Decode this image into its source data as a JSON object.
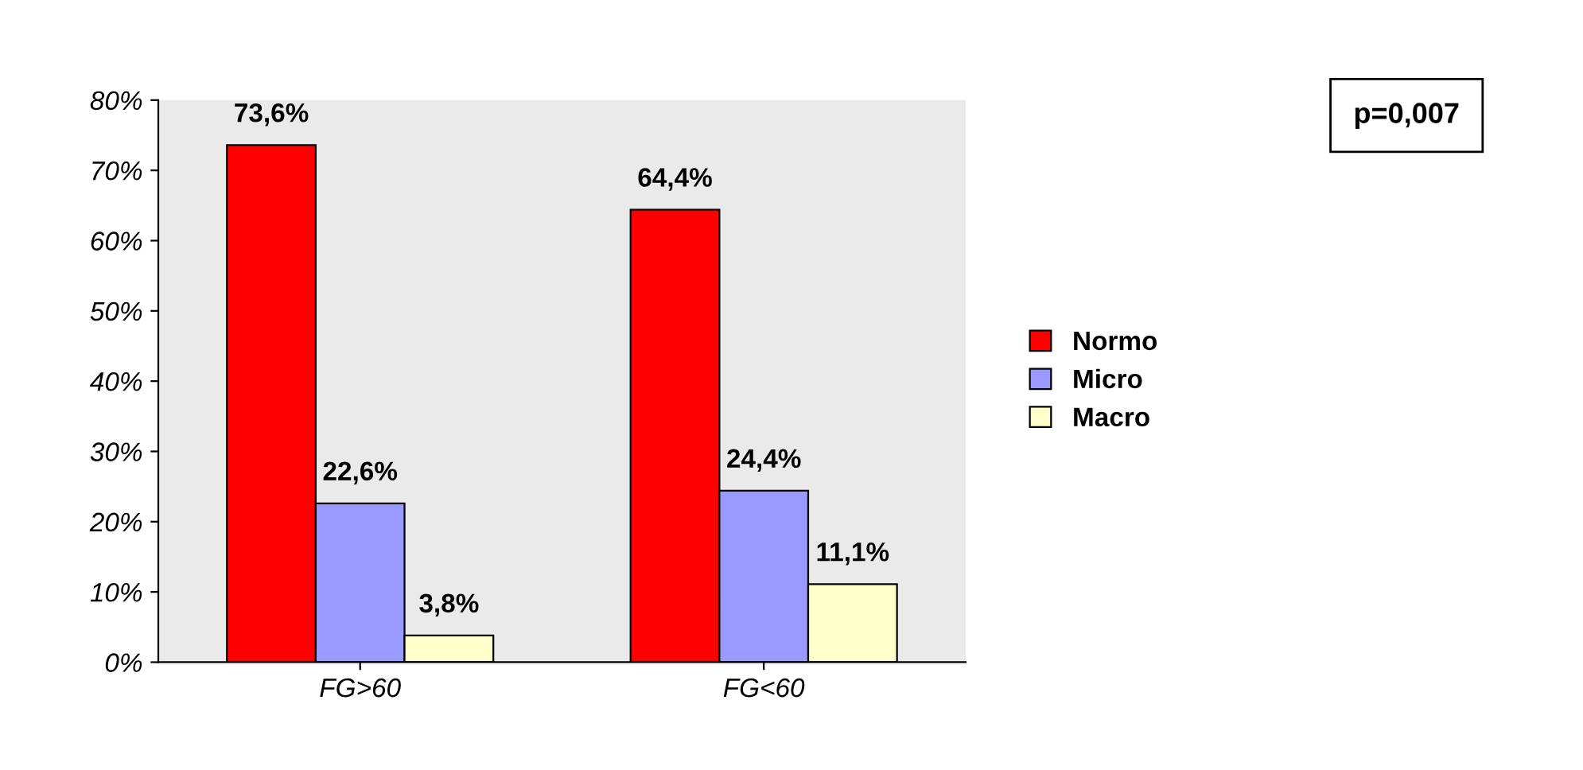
{
  "chart_data": {
    "type": "bar",
    "categories": [
      "FG>60",
      "FG<60"
    ],
    "series": [
      {
        "name": "Normo",
        "color": "#ff0000",
        "values": [
          73.6,
          64.4
        ],
        "value_labels": [
          "73,6%",
          "64,4%"
        ]
      },
      {
        "name": "Micro",
        "color": "#9999ff",
        "values": [
          22.6,
          24.4
        ],
        "value_labels": [
          "22,6%",
          "24,4%"
        ]
      },
      {
        "name": "Macro",
        "color": "#ffffcc",
        "values": [
          3.8,
          11.1
        ],
        "value_labels": [
          "3,8%",
          "11,1%"
        ]
      }
    ],
    "ylim": [
      0,
      80
    ],
    "yticks": [
      {
        "value": 0,
        "label": "0%"
      },
      {
        "value": 10,
        "label": "10%"
      },
      {
        "value": 20,
        "label": "20%"
      },
      {
        "value": 30,
        "label": "30%"
      },
      {
        "value": 40,
        "label": "40%"
      },
      {
        "value": 50,
        "label": "50%"
      },
      {
        "value": 60,
        "label": "60%"
      },
      {
        "value": 70,
        "label": "70%"
      },
      {
        "value": 80,
        "label": "80%"
      }
    ],
    "annotations": [
      "p=0,007"
    ],
    "legend": "right",
    "grid": false
  }
}
